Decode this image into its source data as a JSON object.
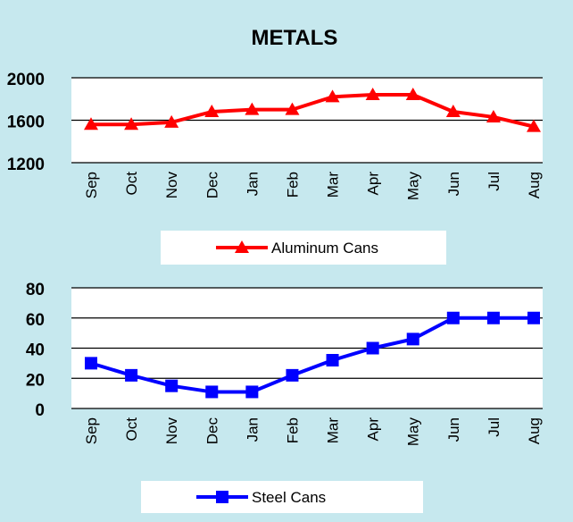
{
  "chart_data": [
    {
      "type": "line",
      "title": "METALS",
      "categories": [
        "Sep",
        "Oct",
        "Nov",
        "Dec",
        "Jan",
        "Feb",
        "Mar",
        "Apr",
        "May",
        "Jun",
        "Jul",
        "Aug"
      ],
      "series": [
        {
          "name": "Aluminum Cans",
          "values": [
            1560,
            1560,
            1580,
            1680,
            1700,
            1700,
            1820,
            1840,
            1840,
            1680,
            1630,
            1540
          ],
          "color": "#ff0000",
          "marker": "triangle"
        }
      ],
      "yticks": [
        1200,
        1600,
        2000
      ],
      "ylim": [
        1200,
        2000
      ],
      "grid": true,
      "legend_position": "bottom"
    },
    {
      "type": "line",
      "categories": [
        "Sep",
        "Oct",
        "Nov",
        "Dec",
        "Jan",
        "Feb",
        "Mar",
        "Apr",
        "May",
        "Jun",
        "Jul",
        "Aug"
      ],
      "series": [
        {
          "name": "Steel Cans",
          "values": [
            30,
            22,
            15,
            11,
            11,
            22,
            32,
            40,
            46,
            60,
            60,
            60
          ],
          "color": "#0000ff",
          "marker": "square"
        }
      ],
      "yticks": [
        0,
        20,
        40,
        60,
        80
      ],
      "ylim": [
        0,
        80
      ],
      "grid": true,
      "legend_position": "bottom"
    }
  ],
  "colors": {
    "background": "#c6e8ee",
    "plot_area": "#ffffff",
    "grid": "#000000"
  }
}
